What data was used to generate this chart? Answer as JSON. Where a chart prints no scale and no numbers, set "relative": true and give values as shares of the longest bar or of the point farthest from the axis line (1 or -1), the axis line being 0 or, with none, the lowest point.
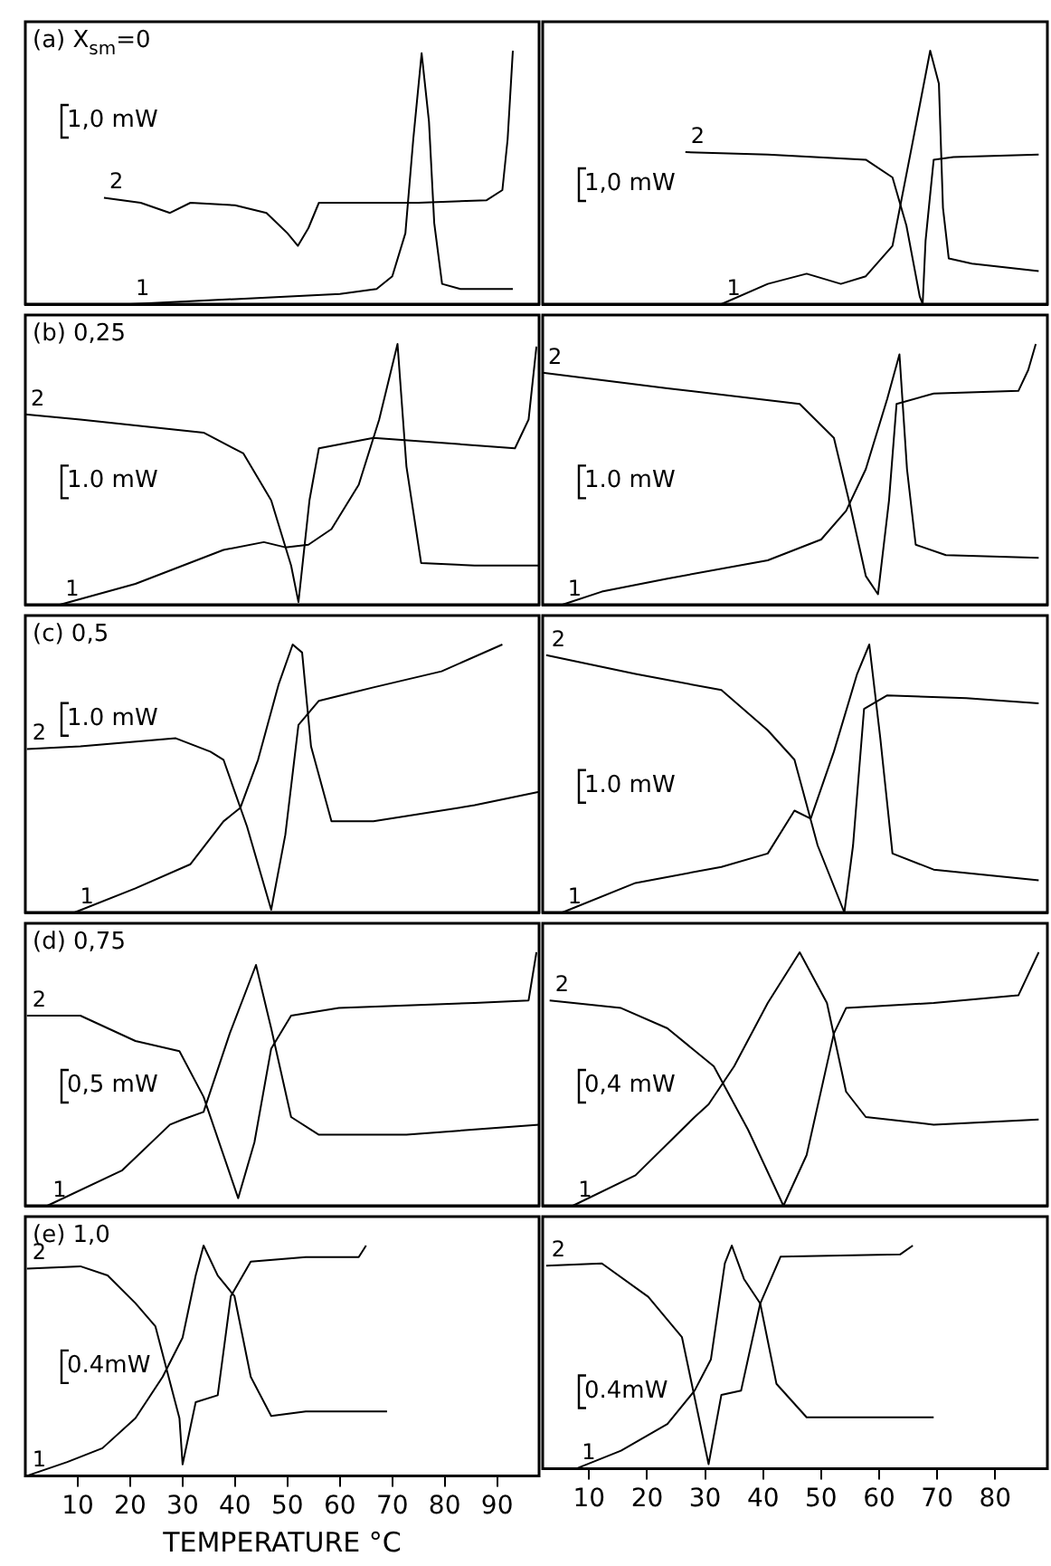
{
  "chart_data": [
    {
      "type": "line",
      "title": "(a) X$_{sm}$=0",
      "relative": true,
      "xlim": [
        0,
        98
      ],
      "tick_labels": false,
      "annotations": [
        "1,0 mW"
      ],
      "series": [
        {
          "name": "1",
          "color": "#000000",
          "x": [
            20,
            40,
            60,
            67,
            70,
            72.5,
            74,
            75.6,
            77,
            78,
            79.5,
            83,
            93
          ],
          "values": [
            0,
            0.02,
            0.04,
            0.06,
            0.11,
            0.28,
            0.65,
            0.99,
            0.72,
            0.32,
            0.08,
            0.06,
            0.06
          ]
        },
        {
          "name": "2",
          "color": "#000000",
          "x": [
            15,
            22,
            27.6,
            31.5,
            40,
            46,
            50,
            52,
            54,
            56,
            65,
            75,
            88,
            91,
            92,
            93
          ],
          "values": [
            0.42,
            0.4,
            0.36,
            0.4,
            0.39,
            0.36,
            0.28,
            0.23,
            0.3,
            0.4,
            0.4,
            0.4,
            0.41,
            0.45,
            0.65,
            1
          ]
        }
      ]
    },
    {
      "type": "line",
      "relative": true,
      "xlim": [
        2,
        89
      ],
      "tick_labels": false,
      "annotations": [
        "1,0 mW"
      ],
      "series": [
        {
          "name": "1",
          "color": "#000000",
          "x": [
            32.8,
            40.8,
            47.5,
            53.4,
            57.7,
            62.3,
            65.7,
            68.8,
            70.3,
            71,
            72,
            76,
            87.5
          ],
          "values": [
            0,
            0.08,
            0.12,
            0.08,
            0.11,
            0.23,
            0.63,
            1,
            0.87,
            0.38,
            0.18,
            0.16,
            0.13
          ]
        },
        {
          "name": "2",
          "color": "#000000",
          "x": [
            26.6,
            40.8,
            57.7,
            62.3,
            64.7,
            67,
            67.5,
            68,
            69.4,
            72.8,
            87.5
          ],
          "values": [
            0.6,
            0.59,
            0.57,
            0.5,
            0.31,
            0.03,
            0,
            0.25,
            0.57,
            0.58,
            0.59
          ]
        }
      ]
    },
    {
      "type": "line",
      "title": "(b) 0,25",
      "relative": true,
      "xlim": [
        0,
        98
      ],
      "tick_labels": false,
      "annotations": [
        "1.0 mW"
      ],
      "series": [
        {
          "name": "1",
          "color": "#000000",
          "x": [
            6.6,
            21,
            37.8,
            45.5,
            49.6,
            54,
            58.4,
            63.6,
            67.5,
            71,
            72.7,
            75.5,
            85.7,
            98
          ],
          "values": [
            0,
            0.08,
            0.21,
            0.24,
            0.22,
            0.23,
            0.29,
            0.46,
            0.71,
            1,
            0.53,
            0.16,
            0.15,
            0.15
          ]
        },
        {
          "name": "2",
          "color": "#000000",
          "x": [
            0,
            10.5,
            34,
            41.6,
            46.9,
            50.7,
            52.1,
            54.2,
            56,
            66.4,
            93.4,
            96,
            97.5
          ],
          "values": [
            0.73,
            0.71,
            0.66,
            0.58,
            0.4,
            0.15,
            0.01,
            0.4,
            0.6,
            0.64,
            0.6,
            0.71,
            0.99
          ]
        }
      ]
    },
    {
      "type": "line",
      "relative": true,
      "xlim": [
        2,
        89
      ],
      "tick_labels": false,
      "annotations": [
        "1.0 mW"
      ],
      "series": [
        {
          "name": "1",
          "color": "#000000",
          "x": [
            5.4,
            12.2,
            23.5,
            40.8,
            50,
            54.3,
            57.7,
            61.4,
            63.5,
            64.8,
            66.3,
            71.5,
            87.5
          ],
          "values": [
            0,
            0.05,
            0.1,
            0.17,
            0.25,
            0.36,
            0.52,
            0.79,
            0.96,
            0.52,
            0.23,
            0.19,
            0.18
          ]
        },
        {
          "name": "2",
          "color": "#000000",
          "x": [
            2,
            23.5,
            46.3,
            52.2,
            55,
            57.7,
            59.8,
            61.7,
            63,
            69.4,
            84,
            85.7,
            87
          ],
          "values": [
            0.89,
            0.83,
            0.77,
            0.64,
            0.38,
            0.11,
            0.04,
            0.4,
            0.77,
            0.81,
            0.82,
            0.9,
            1
          ]
        }
      ]
    },
    {
      "type": "line",
      "title": "(c) 0,5",
      "relative": true,
      "xlim": [
        0,
        98
      ],
      "tick_labels": false,
      "annotations": [
        "1.0 mW"
      ],
      "series": [
        {
          "name": "1",
          "color": "#000000",
          "x": [
            9.4,
            21,
            31.5,
            37.8,
            41,
            44.4,
            48.3,
            51,
            52.8,
            54.5,
            58.4,
            66.4,
            85.7,
            98
          ],
          "values": [
            0,
            0.09,
            0.18,
            0.34,
            0.39,
            0.57,
            0.85,
            1,
            0.97,
            0.62,
            0.34,
            0.34,
            0.4,
            0.45
          ]
        },
        {
          "name": "2",
          "color": "#000000",
          "x": [
            0.3,
            10.5,
            28.7,
            35.3,
            37.8,
            42.3,
            46.9,
            49.6,
            52.1,
            56,
            66.4,
            79.4,
            91
          ],
          "values": [
            0.61,
            0.62,
            0.65,
            0.6,
            0.57,
            0.32,
            0.01,
            0.29,
            0.7,
            0.79,
            0.84,
            0.9,
            1
          ]
        }
      ]
    },
    {
      "type": "line",
      "relative": true,
      "xlim": [
        2,
        89
      ],
      "tick_labels": false,
      "annotations": [
        "1.0 mW"
      ],
      "series": [
        {
          "name": "1",
          "color": "#000000",
          "x": [
            5.4,
            18,
            32.8,
            40.8,
            45.4,
            48.2,
            52.2,
            56.2,
            58.3,
            60.2,
            62.3,
            69.4,
            87.5
          ],
          "values": [
            0,
            0.11,
            0.17,
            0.22,
            0.38,
            0.35,
            0.6,
            0.89,
            1,
            0.65,
            0.22,
            0.16,
            0.12
          ]
        },
        {
          "name": "2",
          "color": "#000000",
          "x": [
            2.6,
            18,
            32.8,
            40.8,
            45.4,
            49.4,
            54,
            55.5,
            57.4,
            61.4,
            75,
            87.5
          ],
          "values": [
            0.96,
            0.89,
            0.83,
            0.68,
            0.57,
            0.25,
            0,
            0.25,
            0.76,
            0.81,
            0.8,
            0.78
          ]
        }
      ]
    },
    {
      "type": "line",
      "title": "(d) 0,75",
      "relative": true,
      "xlim": [
        0,
        98
      ],
      "tick_labels": false,
      "annotations": [
        "0,5 mW"
      ],
      "series": [
        {
          "name": "1",
          "color": "#000000",
          "x": [
            4.2,
            18.5,
            27.6,
            30,
            34,
            39,
            44,
            46.9,
            50.7,
            56,
            72.7,
            98
          ],
          "values": [
            0,
            0.14,
            0.32,
            0.34,
            0.37,
            0.68,
            0.95,
            0.7,
            0.35,
            0.28,
            0.28,
            0.32
          ]
        },
        {
          "name": "2",
          "color": "#000000",
          "x": [
            0.3,
            10.5,
            21,
            29.4,
            34,
            40.6,
            43.7,
            46.9,
            50.7,
            59.8,
            85.7,
            96,
            97.5
          ],
          "values": [
            0.75,
            0.75,
            0.65,
            0.61,
            0.43,
            0.03,
            0.25,
            0.62,
            0.75,
            0.78,
            0.8,
            0.81,
            1
          ]
        }
      ]
    },
    {
      "type": "line",
      "relative": true,
      "xlim": [
        2,
        89
      ],
      "tick_labels": false,
      "annotations": [
        "0,4 mW"
      ],
      "series": [
        {
          "name": "1",
          "color": "#000000",
          "x": [
            7.2,
            18,
            28.2,
            30.6,
            35,
            40.8,
            46.3,
            51,
            54.3,
            57.7,
            69.4,
            87.5
          ],
          "values": [
            0,
            0.12,
            0.35,
            0.4,
            0.55,
            0.8,
            1,
            0.8,
            0.45,
            0.35,
            0.32,
            0.34
          ]
        },
        {
          "name": "2",
          "color": "#000000",
          "x": [
            3.2,
            15.5,
            23.5,
            31.5,
            37.4,
            43.5,
            47.5,
            52.2,
            54.3,
            69.4,
            84,
            87.5
          ],
          "values": [
            0.81,
            0.78,
            0.7,
            0.55,
            0.3,
            0,
            0.2,
            0.68,
            0.78,
            0.8,
            0.83,
            1
          ]
        }
      ]
    },
    {
      "type": "line",
      "title": "(e) 1,0",
      "relative": true,
      "xlim": [
        0,
        98
      ],
      "xticks": [
        10,
        20,
        30,
        40,
        50,
        60,
        70,
        80,
        90
      ],
      "tick_labels": "x",
      "xlabel": "TEMPERATURE °C",
      "annotations": [
        "0.4mW"
      ],
      "series": [
        {
          "name": "1",
          "color": "#000000",
          "x": [
            0.3,
            8,
            14.7,
            21,
            26.2,
            30,
            32.5,
            34,
            36.7,
            39.9,
            43,
            46.9,
            53.5,
            69
          ],
          "values": [
            0,
            0.06,
            0.12,
            0.25,
            0.43,
            0.6,
            0.87,
            1,
            0.87,
            0.78,
            0.43,
            0.26,
            0.28,
            0.28
          ]
        },
        {
          "name": "2",
          "color": "#000000",
          "x": [
            0.3,
            10.5,
            15.7,
            21,
            24.8,
            29.4,
            30,
            32.5,
            36.7,
            39.2,
            43,
            53.5,
            63.6,
            65
          ],
          "values": [
            0.9,
            0.91,
            0.87,
            0.75,
            0.65,
            0.25,
            0.05,
            0.32,
            0.35,
            0.78,
            0.93,
            0.95,
            0.95,
            1
          ]
        }
      ]
    },
    {
      "type": "line",
      "relative": true,
      "xlim": [
        2,
        89
      ],
      "xticks": [
        10,
        20,
        30,
        40,
        50,
        60,
        70,
        80
      ],
      "tick_labels": "x",
      "annotations": [
        "0.4mW"
      ],
      "series": [
        {
          "name": "1",
          "color": "#000000",
          "x": [
            7.8,
            15.5,
            23.5,
            28.2,
            31,
            33.4,
            34.6,
            36.7,
            39.5,
            42.3,
            47.5,
            69.4
          ],
          "values": [
            0,
            0.08,
            0.2,
            0.35,
            0.49,
            0.92,
            1,
            0.85,
            0.74,
            0.38,
            0.23,
            0.23
          ]
        },
        {
          "name": "2",
          "color": "#000000",
          "x": [
            2.6,
            12.2,
            20.2,
            26,
            30.6,
            32.8,
            36.2,
            39.5,
            43,
            63.6,
            65.8
          ],
          "values": [
            0.91,
            0.92,
            0.77,
            0.59,
            0.02,
            0.33,
            0.35,
            0.74,
            0.95,
            0.96,
            1
          ]
        }
      ]
    }
  ]
}
